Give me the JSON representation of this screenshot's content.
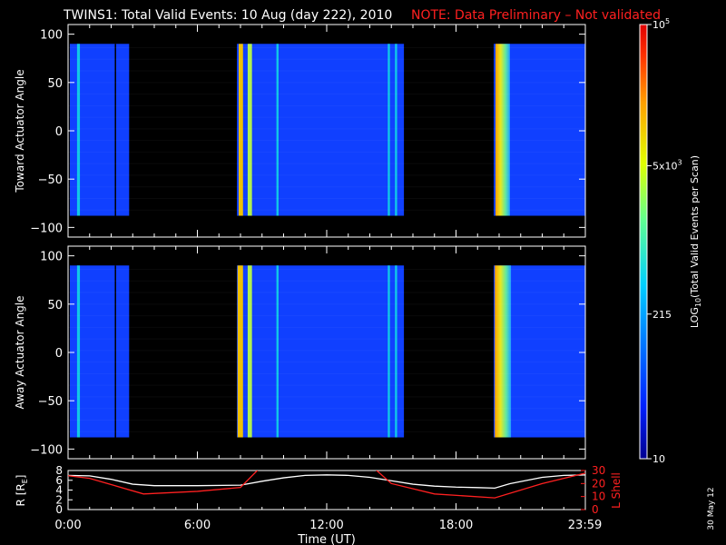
{
  "header": {
    "title": "TWINS1: Total Valid Events: 10 Aug (day 222), 2010",
    "note": "NOTE: Data Preliminary – Not validated",
    "note_color": "#ff2020"
  },
  "footer": {
    "date_stamp": "30 May 12"
  },
  "chart_data": [
    {
      "type": "heatmap",
      "ylabel": "Toward Actuator Angle",
      "ylim": [
        -110,
        110
      ],
      "yticks": [
        "100",
        "50",
        "0",
        "−50",
        "−100"
      ],
      "x_range_hours": [
        0,
        24
      ],
      "data_extent_deg": [
        -88,
        90
      ],
      "colorscale": "log10, 10 to 1e5, rainbow",
      "intervals": [
        {
          "start": "00:05",
          "end": "02:50",
          "level": "low",
          "stripes": [
            {
              "at": "00:25",
              "width_min": 8,
              "level": "mid"
            },
            {
              "at": "02:10",
              "width_min": 2,
              "level": "gap"
            }
          ]
        },
        {
          "start": "07:50",
          "end": "15:35",
          "level": "low",
          "stripes": [
            {
              "at": "07:55",
              "width_min": 12,
              "level": "high"
            },
            {
              "at": "08:20",
              "width_min": 12,
              "level": "mid-high"
            },
            {
              "at": "09:40",
              "width_min": 6,
              "level": "mid"
            },
            {
              "at": "14:50",
              "width_min": 6,
              "level": "mid"
            },
            {
              "at": "15:10",
              "width_min": 6,
              "level": "mid"
            }
          ]
        },
        {
          "start": "19:45",
          "end": "24:00",
          "level": "low",
          "stripes": [
            {
              "at": "19:50",
              "width_min": 40,
              "level": "high-gradient"
            }
          ]
        }
      ]
    },
    {
      "type": "heatmap",
      "ylabel": "Away Actuator Angle",
      "ylim": [
        -110,
        110
      ],
      "yticks": [
        "100",
        "50",
        "0",
        "−50",
        "−100"
      ],
      "x_range_hours": [
        0,
        24
      ],
      "data_extent_deg": [
        -88,
        90
      ],
      "colorscale": "log10, 10 to 1e5, rainbow",
      "intervals": [
        {
          "start": "00:05",
          "end": "02:50",
          "level": "low",
          "stripes": [
            {
              "at": "00:25",
              "width_min": 8,
              "level": "mid"
            },
            {
              "at": "02:10",
              "width_min": 2,
              "level": "gap"
            }
          ]
        },
        {
          "start": "07:50",
          "end": "15:35",
          "level": "low",
          "stripes": [
            {
              "at": "07:52",
              "width_min": 15,
              "level": "high"
            },
            {
              "at": "08:20",
              "width_min": 12,
              "level": "mid-high"
            },
            {
              "at": "09:40",
              "width_min": 6,
              "level": "mid"
            },
            {
              "at": "14:50",
              "width_min": 6,
              "level": "mid"
            },
            {
              "at": "15:10",
              "width_min": 6,
              "level": "mid"
            }
          ]
        },
        {
          "start": "19:45",
          "end": "24:00",
          "level": "low",
          "stripes": [
            {
              "at": "19:48",
              "width_min": 45,
              "level": "high-gradient"
            }
          ]
        }
      ]
    },
    {
      "type": "line",
      "xlabel": "Time (UT)",
      "xticks": [
        "0:00",
        "6:00",
        "12:00",
        "18:00",
        "23:59"
      ],
      "ylabel_left": "R [R",
      "ylabel_left_sub": "E",
      "ylabel_left_close": "]",
      "ylabel_right": "L Shell",
      "ylim_left": [
        0,
        8
      ],
      "yticks_left": [
        "8",
        "6",
        "4",
        "2",
        "0"
      ],
      "ylim_right": [
        0,
        30
      ],
      "yticks_right": [
        "30",
        "20",
        "10",
        "0"
      ],
      "series": [
        {
          "color": "#ffffff",
          "x": [
            0,
            1,
            2,
            3,
            4,
            6,
            8,
            9,
            10,
            11,
            12,
            13,
            14,
            15,
            16,
            17,
            18,
            19,
            19.8,
            20.5,
            22,
            23,
            24
          ],
          "y": [
            7.0,
            6.9,
            6.2,
            5.2,
            4.9,
            4.9,
            5.0,
            5.8,
            6.5,
            7.0,
            7.1,
            7.0,
            6.6,
            5.9,
            5.2,
            4.8,
            4.6,
            4.5,
            4.4,
            5.3,
            6.6,
            7.0,
            7.1
          ]
        },
        {
          "color": "#ff2020",
          "axis": "right",
          "x": [
            0,
            1,
            3.5,
            6,
            8,
            9.5,
            13.5,
            15,
            17,
            19.8,
            22,
            24
          ],
          "y": [
            26,
            24,
            12,
            14,
            17,
            42,
            42,
            20,
            12,
            9,
            20,
            28
          ]
        }
      ]
    }
  ],
  "colorbar": {
    "label": "LOG",
    "label_sub": "10",
    "label_rest": "(Total Valid Events per Scan)",
    "ticks": [
      {
        "value": 100000,
        "text": "10",
        "sup": "5"
      },
      {
        "value": 5000,
        "text": "5x10",
        "sup": "3"
      },
      {
        "value": 215,
        "text": "215",
        "sup": ""
      },
      {
        "value": 10,
        "text": "10",
        "sup": ""
      }
    ],
    "range": [
      10,
      100000
    ],
    "scale": "log"
  }
}
